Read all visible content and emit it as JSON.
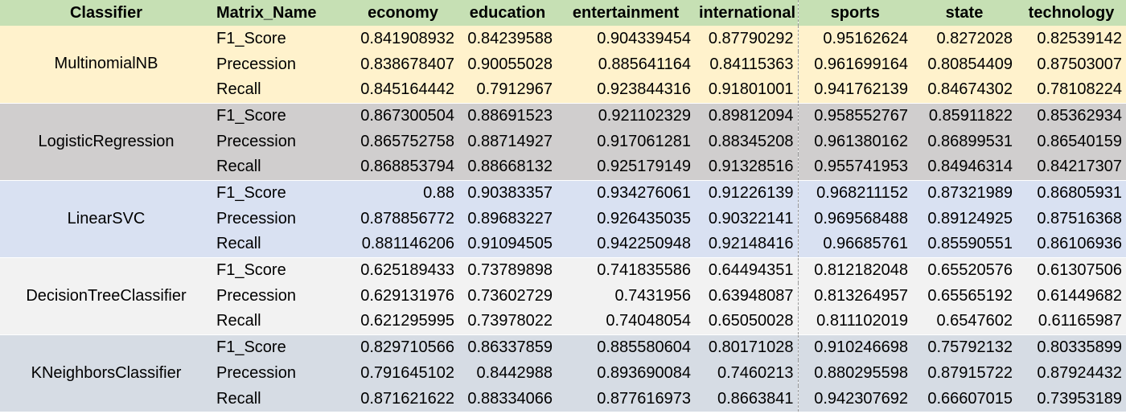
{
  "table": {
    "headers": [
      "Classifier",
      "Matrix_Name",
      "economy",
      "education",
      "entertainment",
      "international",
      "sports",
      "state",
      "technology"
    ],
    "groups": [
      {
        "classifier": "MultinomialNB",
        "rows": [
          {
            "metric": "F1_Score",
            "values": [
              "0.841908932",
              "0.84239588",
              "0.904339454",
              "0.87790292",
              "0.95162624",
              "0.8272028",
              "0.82539142"
            ]
          },
          {
            "metric": "Precession",
            "values": [
              "0.838678407",
              "0.90055028",
              "0.885641164",
              "0.84115363",
              "0.961699164",
              "0.80854409",
              "0.87503007"
            ]
          },
          {
            "metric": "Recall",
            "values": [
              "0.845164442",
              "0.7912967",
              "0.923844316",
              "0.91801001",
              "0.941762139",
              "0.84674302",
              "0.78108224"
            ]
          }
        ]
      },
      {
        "classifier": "LogisticRegression",
        "rows": [
          {
            "metric": "F1_Score",
            "values": [
              "0.867300504",
              "0.88691523",
              "0.921102329",
              "0.89812094",
              "0.958552767",
              "0.85911822",
              "0.85362934"
            ]
          },
          {
            "metric": "Precession",
            "values": [
              "0.865752758",
              "0.88714927",
              "0.917061281",
              "0.88345208",
              "0.961380162",
              "0.86899531",
              "0.86540159"
            ]
          },
          {
            "metric": "Recall",
            "values": [
              "0.868853794",
              "0.88668132",
              "0.925179149",
              "0.91328516",
              "0.955741953",
              "0.84946314",
              "0.84217307"
            ]
          }
        ]
      },
      {
        "classifier": "LinearSVC",
        "rows": [
          {
            "metric": "F1_Score",
            "values": [
              "0.88",
              "0.90383357",
              "0.934276061",
              "0.91226139",
              "0.968211152",
              "0.87321989",
              "0.86805931"
            ]
          },
          {
            "metric": "Precession",
            "values": [
              "0.878856772",
              "0.89683227",
              "0.926435035",
              "0.90322141",
              "0.969568488",
              "0.89124925",
              "0.87516368"
            ]
          },
          {
            "metric": "Recall",
            "values": [
              "0.881146206",
              "0.91094505",
              "0.942250948",
              "0.92148416",
              "0.96685761",
              "0.85590551",
              "0.86106936"
            ]
          }
        ]
      },
      {
        "classifier": "DecisionTreeClassifier",
        "rows": [
          {
            "metric": "F1_Score",
            "values": [
              "0.625189433",
              "0.73789898",
              "0.741835586",
              "0.64494351",
              "0.812182048",
              "0.65520576",
              "0.61307506"
            ]
          },
          {
            "metric": "Precession",
            "values": [
              "0.629131976",
              "0.73602729",
              "0.7431956",
              "0.63948087",
              "0.813264957",
              "0.65565192",
              "0.61449682"
            ]
          },
          {
            "metric": "Recall",
            "values": [
              "0.621295995",
              "0.73978022",
              "0.74048054",
              "0.65050028",
              "0.811102019",
              "0.6547602",
              "0.61165987"
            ]
          }
        ]
      },
      {
        "classifier": "KNeighborsClassifier",
        "rows": [
          {
            "metric": "F1_Score",
            "values": [
              "0.829710566",
              "0.86337859",
              "0.885580604",
              "0.80171028",
              "0.910246698",
              "0.75792132",
              "0.80335899"
            ]
          },
          {
            "metric": "Precession",
            "values": [
              "0.791645102",
              "0.8442988",
              "0.893690084",
              "0.7460213",
              "0.880295598",
              "0.87915722",
              "0.87924432"
            ]
          },
          {
            "metric": "Recall",
            "values": [
              "0.871621622",
              "0.88334066",
              "0.877616973",
              "0.8663841",
              "0.942307692",
              "0.66607015",
              "0.73953189"
            ]
          }
        ]
      }
    ]
  },
  "colors": {
    "header_bg": "#c6e0b4",
    "group_bg": [
      "#fff2cc",
      "#d0cece",
      "#d9e1f2",
      "#f2f2f2",
      "#d6dce4"
    ]
  }
}
